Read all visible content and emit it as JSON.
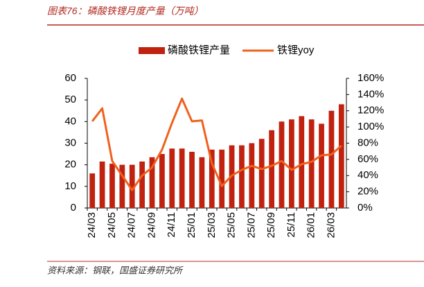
{
  "chart_data": {
    "type": "bar_line",
    "title": "图表76：磷酸铁锂月度产量（万吨）",
    "source": "资料来源：钢联，国盛证券研究所",
    "categories": [
      "24/03",
      null,
      "24/05",
      null,
      "24/07",
      null,
      "24/09",
      null,
      "24/11",
      null,
      "25/01",
      null,
      "25/03",
      null,
      "25/05",
      null,
      "25/07",
      null,
      "25/09",
      null,
      "25/11",
      null,
      "26/01",
      null,
      "26/03",
      null
    ],
    "series": [
      {
        "name": "磷酸铁锂产量",
        "type": "bar",
        "color": "#c0220f",
        "values": [
          16,
          21.5,
          20.5,
          20,
          20,
          21.5,
          23.5,
          25,
          27.5,
          27.5,
          26,
          23.5,
          27,
          27,
          29,
          29,
          30,
          32,
          36,
          40,
          41,
          42.5,
          41,
          39,
          45,
          48
        ]
      },
      {
        "name": "铁锂yoy",
        "type": "line",
        "axis": "y2",
        "color": "#f0601c",
        "values": [
          107,
          123,
          58,
          40,
          22,
          40,
          50,
          72,
          105,
          135,
          107,
          108,
          55,
          27,
          40,
          47,
          52,
          48,
          52,
          58,
          47,
          54,
          57,
          65,
          66,
          77
        ]
      }
    ],
    "ylim": [
      0,
      60
    ],
    "yticks": [
      0,
      10,
      20,
      30,
      40,
      50,
      60
    ],
    "y2lim": [
      0,
      160
    ],
    "y2ticks": [
      {
        "value": 0,
        "label": "0%"
      },
      {
        "value": 20,
        "label": "20%"
      },
      {
        "value": 40,
        "label": "40%"
      },
      {
        "value": 60,
        "label": "60%"
      },
      {
        "value": 80,
        "label": "80%"
      },
      {
        "value": 100,
        "label": "100%"
      },
      {
        "value": 120,
        "label": "120%"
      },
      {
        "value": 140,
        "label": "140%"
      },
      {
        "value": 160,
        "label": "160%"
      }
    ]
  }
}
